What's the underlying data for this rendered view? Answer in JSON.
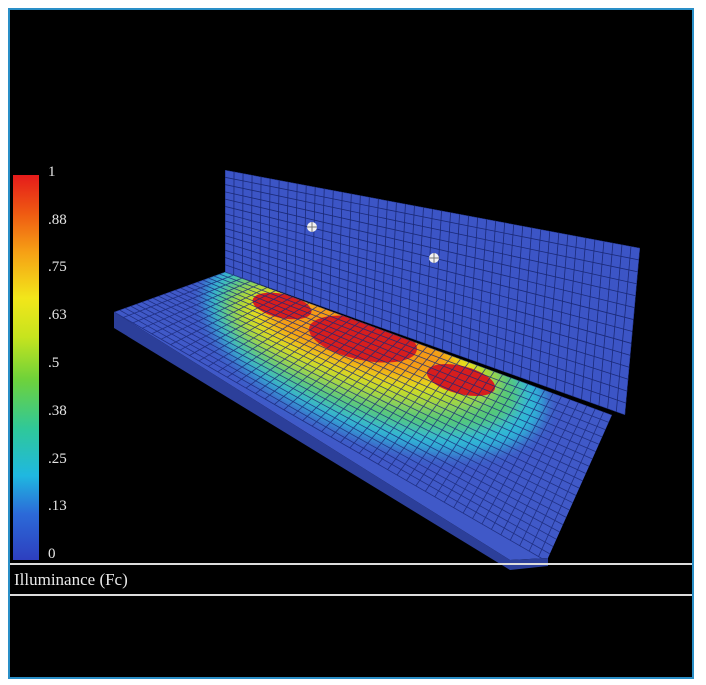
{
  "legend": {
    "ticks": [
      "1",
      ".88",
      ".75",
      ".63",
      ".5",
      ".38",
      ".25",
      ".13",
      "0"
    ],
    "colors": [
      "#e51b1b",
      "#ef5a12",
      "#f6a015",
      "#f2e61a",
      "#c7e41e",
      "#6fd23a",
      "#2fc89a",
      "#1fb8e0",
      "#2c6ad8",
      "#2d3fbf"
    ]
  },
  "caption": "Illuminance (Fc)",
  "colors": {
    "frame_border": "#2a8fc7",
    "background": "#000000",
    "surface_base": "#3f58c8",
    "grid_line": "#1b2a7a",
    "hot_spot": "#d61e1e"
  }
}
